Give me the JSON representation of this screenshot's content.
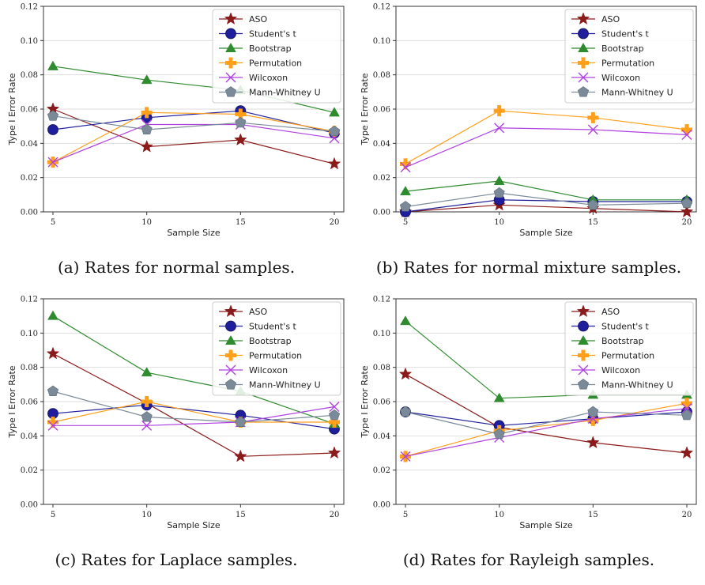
{
  "colors": {
    "ASO": "#8b1a1a",
    "Student's t": "#1f1f9e",
    "Bootstrap": "#2e8b2e",
    "Permutation": "#ff9f1a",
    "Wilcoxon": "#b040e0",
    "Mann-Whitney U": "#7a8a99",
    "grid": "#dddddd",
    "axis": "#333333"
  },
  "markers": {
    "ASO": "star",
    "Student's t": "circle",
    "Bootstrap": "triangle",
    "Permutation": "plus",
    "Wilcoxon": "x",
    "Mann-Whitney U": "pentagon"
  },
  "chart_data": [
    {
      "type": "line",
      "caption": "(a) Rates for normal samples.",
      "xlabel": "Sample Size",
      "ylabel": "Type I Error Rate",
      "x": [
        5,
        10,
        15,
        20
      ],
      "xticks": [
        "5",
        "10",
        "15",
        "20"
      ],
      "yticks": [
        "0.00",
        "0.02",
        "0.04",
        "0.06",
        "0.08",
        "0.10",
        "0.12"
      ],
      "ylim": [
        0,
        0.12
      ],
      "grid": "horizontal",
      "legend_position": "top-right",
      "series": [
        {
          "name": "ASO",
          "values": [
            0.06,
            0.038,
            0.042,
            0.028
          ]
        },
        {
          "name": "Student's t",
          "values": [
            0.048,
            0.055,
            0.059,
            0.046
          ]
        },
        {
          "name": "Bootstrap",
          "values": [
            0.085,
            0.077,
            0.071,
            0.058
          ]
        },
        {
          "name": "Permutation",
          "values": [
            0.029,
            0.058,
            0.057,
            0.047
          ]
        },
        {
          "name": "Wilcoxon",
          "values": [
            0.029,
            0.051,
            0.051,
            0.043
          ]
        },
        {
          "name": "Mann-Whitney U",
          "values": [
            0.056,
            0.048,
            0.052,
            0.047
          ]
        }
      ]
    },
    {
      "type": "line",
      "caption": "(b) Rates for normal mixture samples.",
      "xlabel": "Sample Size",
      "ylabel": "Type I Error Rate",
      "x": [
        5,
        10,
        15,
        20
      ],
      "xticks": [
        "5",
        "10",
        "15",
        "20"
      ],
      "yticks": [
        "0.00",
        "0.02",
        "0.04",
        "0.06",
        "0.08",
        "0.10",
        "0.12"
      ],
      "ylim": [
        0,
        0.12
      ],
      "grid": "horizontal",
      "legend_position": "top-right",
      "series": [
        {
          "name": "ASO",
          "values": [
            0.0,
            0.004,
            0.002,
            0.0
          ]
        },
        {
          "name": "Student's t",
          "values": [
            0.0,
            0.007,
            0.006,
            0.006
          ]
        },
        {
          "name": "Bootstrap",
          "values": [
            0.012,
            0.018,
            0.007,
            0.007
          ]
        },
        {
          "name": "Permutation",
          "values": [
            0.028,
            0.059,
            0.055,
            0.048
          ]
        },
        {
          "name": "Wilcoxon",
          "values": [
            0.026,
            0.049,
            0.048,
            0.045
          ]
        },
        {
          "name": "Mann-Whitney U",
          "values": [
            0.003,
            0.011,
            0.004,
            0.005
          ]
        }
      ]
    },
    {
      "type": "line",
      "caption": "(c) Rates for Laplace samples.",
      "xlabel": "Sample Size",
      "ylabel": "Type I Error Rate",
      "x": [
        5,
        10,
        15,
        20
      ],
      "xticks": [
        "5",
        "10",
        "15",
        "20"
      ],
      "yticks": [
        "0.00",
        "0.02",
        "0.04",
        "0.06",
        "0.08",
        "0.10",
        "0.12"
      ],
      "ylim": [
        0,
        0.12
      ],
      "grid": "horizontal",
      "legend_position": "top-right",
      "series": [
        {
          "name": "ASO",
          "values": [
            0.088,
            0.059,
            0.028,
            0.03
          ]
        },
        {
          "name": "Student's t",
          "values": [
            0.053,
            0.058,
            0.052,
            0.044
          ]
        },
        {
          "name": "Bootstrap",
          "values": [
            0.11,
            0.077,
            0.066,
            0.047
          ]
        },
        {
          "name": "Permutation",
          "values": [
            0.048,
            0.06,
            0.048,
            0.048
          ]
        },
        {
          "name": "Wilcoxon",
          "values": [
            0.046,
            0.046,
            0.048,
            0.057
          ]
        },
        {
          "name": "Mann-Whitney U",
          "values": [
            0.066,
            0.051,
            0.048,
            0.052
          ]
        }
      ]
    },
    {
      "type": "line",
      "caption": "(d) Rates for Rayleigh samples.",
      "xlabel": "Sample Size",
      "ylabel": "Type I Error Rate",
      "x": [
        5,
        10,
        15,
        20
      ],
      "xticks": [
        "5",
        "10",
        "15",
        "20"
      ],
      "yticks": [
        "0.00",
        "0.02",
        "0.04",
        "0.06",
        "0.08",
        "0.10",
        "0.12"
      ],
      "ylim": [
        0,
        0.12
      ],
      "grid": "horizontal",
      "legend_position": "top-right",
      "series": [
        {
          "name": "ASO",
          "values": [
            0.076,
            0.045,
            0.036,
            0.03
          ]
        },
        {
          "name": "Student's t",
          "values": [
            0.054,
            0.046,
            0.05,
            0.054
          ]
        },
        {
          "name": "Bootstrap",
          "values": [
            0.107,
            0.062,
            0.064,
            0.064
          ]
        },
        {
          "name": "Permutation",
          "values": [
            0.028,
            0.043,
            0.049,
            0.059
          ]
        },
        {
          "name": "Wilcoxon",
          "values": [
            0.028,
            0.039,
            0.05,
            0.056
          ]
        },
        {
          "name": "Mann-Whitney U",
          "values": [
            0.054,
            0.041,
            0.054,
            0.052
          ]
        }
      ]
    }
  ]
}
